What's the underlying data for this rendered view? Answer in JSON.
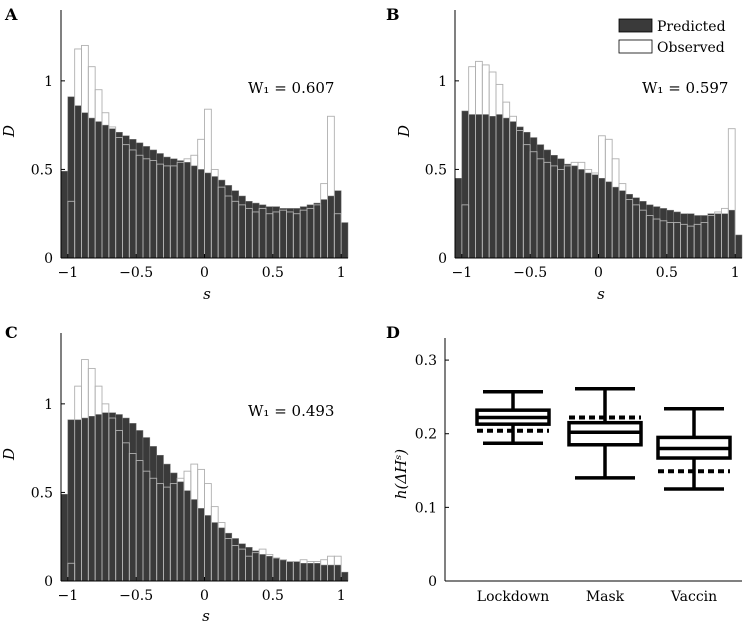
{
  "legend": {
    "predicted_label": "Predicted",
    "observed_label": "Observed",
    "predicted_color": "#3a3a3a",
    "observed_color": "#ffffff"
  },
  "chart_data": [
    {
      "panel": "A",
      "type": "bar",
      "annotation": "W₁ = 0.607",
      "xlabel": "s",
      "ylabel": "D",
      "xlim": [
        -1,
        1
      ],
      "ylim": [
        0,
        1.4
      ],
      "xticks": [
        -1,
        -0.5,
        0,
        0.5,
        1
      ],
      "yticks": [
        0,
        0.5,
        1
      ],
      "bin_width": 0.05,
      "bin_starts": [
        -1.05,
        -1.0,
        -0.95,
        -0.9,
        -0.85,
        -0.8,
        -0.75,
        -0.7,
        -0.65,
        -0.6,
        -0.55,
        -0.5,
        -0.45,
        -0.4,
        -0.35,
        -0.3,
        -0.25,
        -0.2,
        -0.15,
        -0.1,
        -0.05,
        0.0,
        0.05,
        0.1,
        0.15,
        0.2,
        0.25,
        0.3,
        0.35,
        0.4,
        0.45,
        0.5,
        0.55,
        0.6,
        0.65,
        0.7,
        0.75,
        0.8,
        0.85,
        0.9,
        0.95,
        1.0
      ],
      "series": [
        {
          "name": "Predicted",
          "values": [
            0.49,
            0.91,
            0.86,
            0.82,
            0.79,
            0.77,
            0.75,
            0.73,
            0.71,
            0.69,
            0.67,
            0.65,
            0.63,
            0.61,
            0.59,
            0.57,
            0.56,
            0.55,
            0.54,
            0.52,
            0.5,
            0.48,
            0.46,
            0.44,
            0.41,
            0.38,
            0.35,
            0.32,
            0.31,
            0.3,
            0.29,
            0.29,
            0.28,
            0.28,
            0.28,
            0.29,
            0.3,
            0.31,
            0.33,
            0.35,
            0.38,
            0.2
          ]
        },
        {
          "name": "Observed",
          "values": [
            0.0,
            0.32,
            1.18,
            1.2,
            1.08,
            0.95,
            0.82,
            0.74,
            0.68,
            0.64,
            0.61,
            0.58,
            0.56,
            0.55,
            0.53,
            0.52,
            0.52,
            0.54,
            0.56,
            0.58,
            0.67,
            0.84,
            0.5,
            0.4,
            0.35,
            0.32,
            0.3,
            0.28,
            0.26,
            0.28,
            0.25,
            0.26,
            0.27,
            0.26,
            0.25,
            0.27,
            0.28,
            0.3,
            0.42,
            0.8,
            0.25,
            0.0
          ]
        }
      ]
    },
    {
      "panel": "B",
      "type": "bar",
      "annotation": "W₁ = 0.597",
      "xlabel": "s",
      "ylabel": "D",
      "xlim": [
        -1,
        1
      ],
      "ylim": [
        0,
        1.4
      ],
      "xticks": [
        -1,
        -0.5,
        0,
        0.5,
        1
      ],
      "yticks": [
        0,
        0.5,
        1
      ],
      "bin_width": 0.05,
      "bin_starts": [
        -1.05,
        -1.0,
        -0.95,
        -0.9,
        -0.85,
        -0.8,
        -0.75,
        -0.7,
        -0.65,
        -0.6,
        -0.55,
        -0.5,
        -0.45,
        -0.4,
        -0.35,
        -0.3,
        -0.25,
        -0.2,
        -0.15,
        -0.1,
        -0.05,
        0.0,
        0.05,
        0.1,
        0.15,
        0.2,
        0.25,
        0.3,
        0.35,
        0.4,
        0.45,
        0.5,
        0.55,
        0.6,
        0.65,
        0.7,
        0.75,
        0.8,
        0.85,
        0.9,
        0.95,
        1.0
      ],
      "series": [
        {
          "name": "Predicted",
          "values": [
            0.45,
            0.83,
            0.81,
            0.81,
            0.81,
            0.8,
            0.81,
            0.79,
            0.77,
            0.74,
            0.71,
            0.68,
            0.64,
            0.61,
            0.58,
            0.56,
            0.53,
            0.52,
            0.5,
            0.48,
            0.47,
            0.45,
            0.43,
            0.4,
            0.38,
            0.36,
            0.34,
            0.32,
            0.3,
            0.29,
            0.28,
            0.27,
            0.26,
            0.25,
            0.25,
            0.24,
            0.24,
            0.25,
            0.25,
            0.25,
            0.27,
            0.13
          ]
        },
        {
          "name": "Observed",
          "values": [
            0.0,
            0.3,
            1.08,
            1.11,
            1.09,
            1.05,
            0.98,
            0.88,
            0.8,
            0.72,
            0.64,
            0.6,
            0.56,
            0.54,
            0.52,
            0.5,
            0.52,
            0.54,
            0.54,
            0.5,
            0.48,
            0.69,
            0.67,
            0.56,
            0.42,
            0.33,
            0.3,
            0.27,
            0.24,
            0.22,
            0.21,
            0.2,
            0.2,
            0.19,
            0.18,
            0.19,
            0.2,
            0.24,
            0.26,
            0.28,
            0.73,
            0.0
          ]
        }
      ]
    },
    {
      "panel": "C",
      "type": "bar",
      "annotation": "W₁ = 0.493",
      "xlabel": "s",
      "ylabel": "D",
      "xlim": [
        -1,
        1
      ],
      "ylim": [
        0,
        1.4
      ],
      "xticks": [
        -1,
        -0.5,
        0,
        0.5,
        1
      ],
      "yticks": [
        0,
        0.5,
        1
      ],
      "bin_width": 0.05,
      "bin_starts": [
        -1.05,
        -1.0,
        -0.95,
        -0.9,
        -0.85,
        -0.8,
        -0.75,
        -0.7,
        -0.65,
        -0.6,
        -0.55,
        -0.5,
        -0.45,
        -0.4,
        -0.35,
        -0.3,
        -0.25,
        -0.2,
        -0.15,
        -0.1,
        -0.05,
        0.0,
        0.05,
        0.1,
        0.15,
        0.2,
        0.25,
        0.3,
        0.35,
        0.4,
        0.45,
        0.5,
        0.55,
        0.6,
        0.65,
        0.7,
        0.75,
        0.8,
        0.85,
        0.9,
        0.95,
        1.0
      ],
      "series": [
        {
          "name": "Predicted",
          "values": [
            0.49,
            0.91,
            0.91,
            0.92,
            0.93,
            0.94,
            0.95,
            0.95,
            0.94,
            0.92,
            0.89,
            0.85,
            0.81,
            0.76,
            0.71,
            0.66,
            0.61,
            0.56,
            0.51,
            0.46,
            0.41,
            0.37,
            0.33,
            0.3,
            0.27,
            0.24,
            0.21,
            0.19,
            0.17,
            0.15,
            0.14,
            0.13,
            0.12,
            0.11,
            0.11,
            0.1,
            0.1,
            0.1,
            0.09,
            0.09,
            0.09,
            0.05
          ]
        },
        {
          "name": "Observed",
          "values": [
            0.0,
            0.1,
            1.1,
            1.25,
            1.2,
            1.1,
            1.0,
            0.92,
            0.85,
            0.78,
            0.72,
            0.68,
            0.62,
            0.58,
            0.55,
            0.53,
            0.55,
            0.58,
            0.62,
            0.66,
            0.63,
            0.55,
            0.42,
            0.33,
            0.24,
            0.2,
            0.18,
            0.14,
            0.16,
            0.18,
            0.15,
            0.13,
            0.12,
            0.11,
            0.11,
            0.12,
            0.11,
            0.11,
            0.12,
            0.14,
            0.14,
            0.0
          ]
        }
      ]
    },
    {
      "panel": "D",
      "type": "box",
      "xlabel": "",
      "ylabel": "h(ΔHˢ)",
      "ylim": [
        0,
        0.33
      ],
      "yticks": [
        0,
        0.1,
        0.2,
        0.3
      ],
      "categories": [
        "Lockdown",
        "Mask",
        "Vaccin"
      ],
      "boxes": [
        {
          "whisker_low": 0.187,
          "q1": 0.213,
          "median": 0.222,
          "q3": 0.232,
          "whisker_high": 0.257,
          "observed": 0.204
        },
        {
          "whisker_low": 0.14,
          "q1": 0.185,
          "median": 0.202,
          "q3": 0.215,
          "whisker_high": 0.261,
          "observed": 0.222
        },
        {
          "whisker_low": 0.125,
          "q1": 0.167,
          "median": 0.18,
          "q3": 0.195,
          "whisker_high": 0.234,
          "observed": 0.149
        }
      ]
    }
  ]
}
